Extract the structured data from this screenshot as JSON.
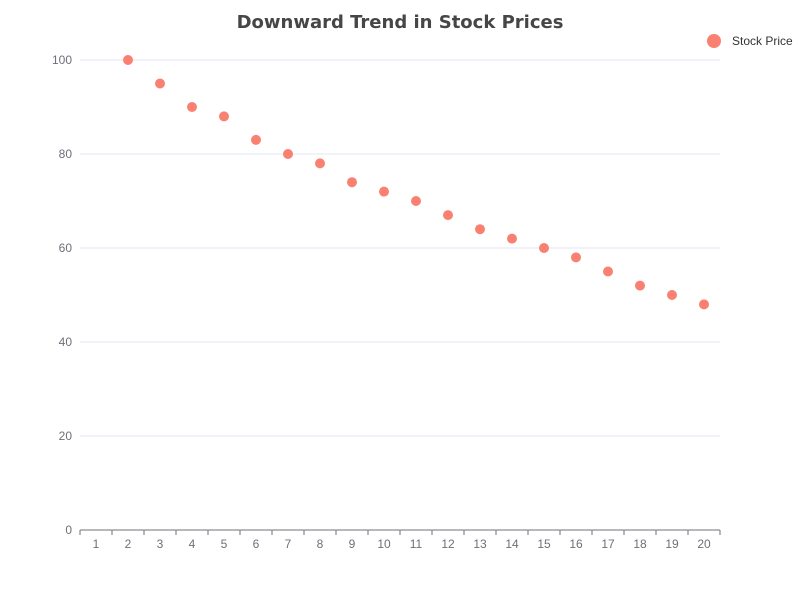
{
  "chart_data": {
    "type": "scatter",
    "title": "Downward Trend in Stock Prices",
    "xlabel": "",
    "ylabel": "",
    "categories": [
      "1",
      "2",
      "3",
      "4",
      "5",
      "6",
      "7",
      "8",
      "9",
      "10",
      "11",
      "12",
      "13",
      "14",
      "15",
      "16",
      "17",
      "18",
      "19",
      "20"
    ],
    "series": [
      {
        "name": "Stock Price",
        "color": "#fa8072",
        "points": [
          {
            "x": "2",
            "y": 100
          },
          {
            "x": "3",
            "y": 95
          },
          {
            "x": "4",
            "y": 90
          },
          {
            "x": "5",
            "y": 88
          },
          {
            "x": "6",
            "y": 83
          },
          {
            "x": "7",
            "y": 80
          },
          {
            "x": "8",
            "y": 78
          },
          {
            "x": "9",
            "y": 74
          },
          {
            "x": "10",
            "y": 72
          },
          {
            "x": "11",
            "y": 70
          },
          {
            "x": "12",
            "y": 67
          },
          {
            "x": "13",
            "y": 64
          },
          {
            "x": "14",
            "y": 62
          },
          {
            "x": "15",
            "y": 60
          },
          {
            "x": "16",
            "y": 58
          },
          {
            "x": "17",
            "y": 55
          },
          {
            "x": "18",
            "y": 52
          },
          {
            "x": "19",
            "y": 50
          },
          {
            "x": "20",
            "y": 48
          }
        ]
      }
    ],
    "y_ticks": [
      0,
      20,
      40,
      60,
      80,
      100
    ],
    "ylim": [
      0,
      100
    ],
    "grid": true,
    "legend_position": "top-right"
  }
}
